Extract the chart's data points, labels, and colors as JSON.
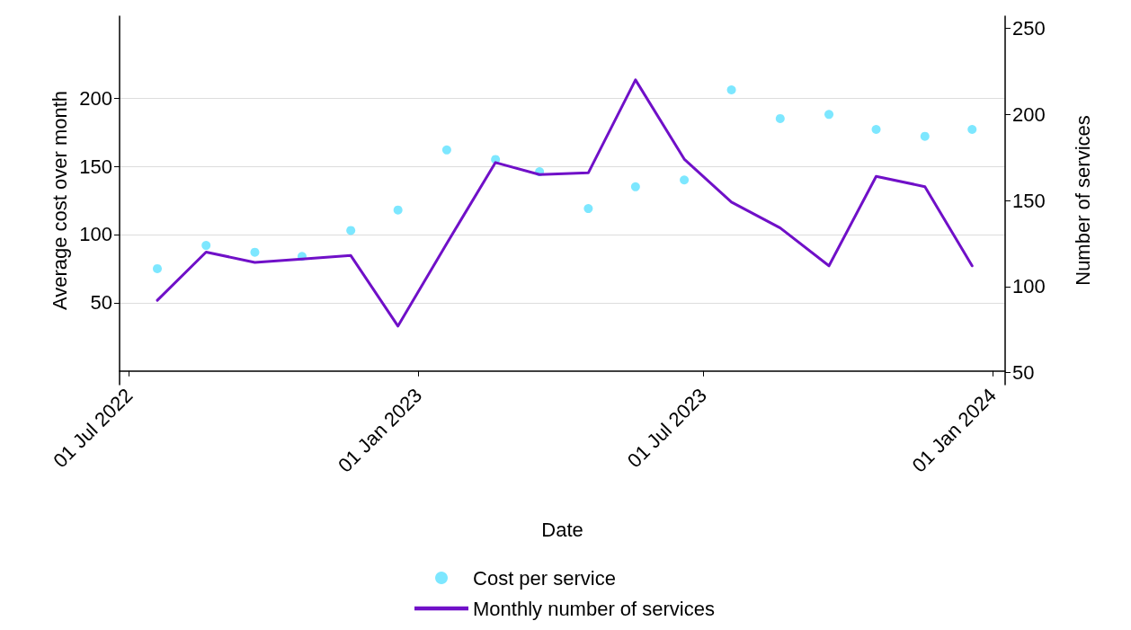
{
  "chart_data": {
    "type": "scatter",
    "xlabel": "Date",
    "ylabel": "Average cost over month",
    "y2label": "Number of services",
    "xlim": [
      "2022-06-25",
      "2024-01-09"
    ],
    "xticks": [
      {
        "value": "2022-07-01",
        "label": "01 Jul 2022"
      },
      {
        "value": "2023-01-01",
        "label": "01 Jan 2023"
      },
      {
        "value": "2023-07-01",
        "label": "01 Jul 2023"
      },
      {
        "value": "2024-01-01",
        "label": "01 Jan 2024"
      }
    ],
    "ylim": [
      -10,
      260
    ],
    "yticks": [
      50,
      100,
      150,
      200
    ],
    "y2lim": [
      43,
      257
    ],
    "y2ticks": [
      50,
      100,
      150,
      200,
      250
    ],
    "grid": "y",
    "legend": "bottom",
    "x": [
      "2022-07-19",
      "2022-08-19",
      "2022-09-19",
      "2022-10-19",
      "2022-11-19",
      "2022-12-19",
      "2023-01-19",
      "2023-02-19",
      "2023-03-19",
      "2023-04-19",
      "2023-05-19",
      "2023-06-19",
      "2023-07-19",
      "2023-08-19",
      "2023-09-19",
      "2023-10-19",
      "2023-11-19",
      "2023-12-19"
    ],
    "series": [
      {
        "name": "Cost per service",
        "marker": "circle",
        "color": "#5ce1ff",
        "values": [
          75,
          92,
          87,
          84,
          103,
          118,
          162,
          155,
          146,
          119,
          135,
          140,
          206,
          185,
          188,
          177,
          172,
          177
        ]
      },
      {
        "name": "Monthly number of services",
        "type": "line",
        "axis": "y2",
        "marker": "none",
        "line_style": "solid",
        "color": "#7010c8",
        "values": [
          92,
          120,
          114,
          116,
          118,
          77,
          125,
          172,
          165,
          166,
          220,
          174,
          149,
          134,
          112,
          164,
          158,
          112
        ]
      }
    ]
  }
}
